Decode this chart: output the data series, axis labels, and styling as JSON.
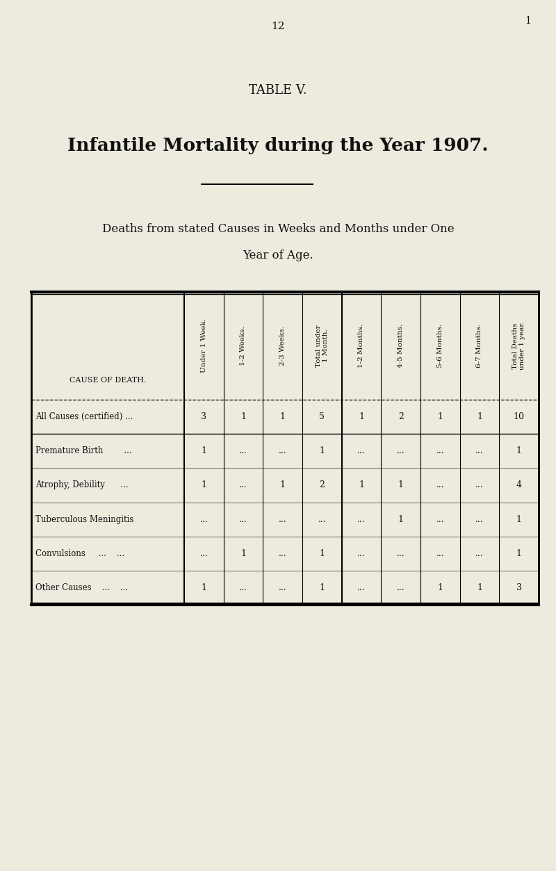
{
  "page_number": "12",
  "page_number_right": "1",
  "table_title": "TABLE V.",
  "subtitle1": "Infantile Mortality during the Year 1907.",
  "subtitle2": "Deaths from stated Causes in Weeks and Months under One",
  "subtitle3": "Year of Age.",
  "bg_color": "#edeade",
  "col_headers": [
    "Under 1 Week.",
    "1-2 Weeks.",
    "2-3 Weeks.",
    "Total under\n1 Month.",
    "1-2 Months.",
    "4-5 Months.",
    "5-6 Months.",
    "6-7 Months.",
    "Total Deaths\nunder 1 year."
  ],
  "row_label_header": "CAUSE OF DEATH.",
  "rows": [
    {
      "cause": "All Causes (certified) ...",
      "values": [
        "3",
        "1",
        "1",
        "5",
        "1",
        "2",
        "1",
        "1",
        "10"
      ],
      "is_summary": true
    },
    {
      "cause": "Premature Birth        ...",
      "values": [
        "1",
        "...",
        "...",
        "1",
        "...",
        "...",
        "...",
        "...",
        "1"
      ],
      "is_summary": false
    },
    {
      "cause": "Atrophy, Debility      ...",
      "values": [
        "1",
        "...",
        "1",
        "2",
        "1",
        "1",
        "...",
        "...",
        "4"
      ],
      "is_summary": false
    },
    {
      "cause": "Tuberculous Meningitis",
      "values": [
        "...",
        "...",
        "...",
        "...",
        "...",
        "1",
        "...",
        "...",
        "1"
      ],
      "is_summary": false
    },
    {
      "cause": "Convulsions     ...    ...",
      "values": [
        "...",
        "1",
        "...",
        "1",
        "...",
        "...",
        "...",
        "...",
        "1"
      ],
      "is_summary": false
    },
    {
      "cause": "Other Causes    ...    ...",
      "values": [
        "1",
        "...",
        "...",
        "1",
        "...",
        "...",
        "1",
        "1",
        "3"
      ],
      "is_summary": false
    }
  ],
  "font_color": "#111111"
}
